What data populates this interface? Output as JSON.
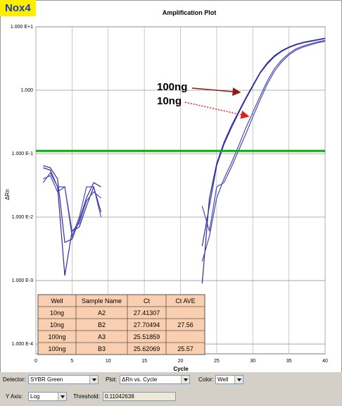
{
  "header": {
    "badge": "Nox4"
  },
  "chart_data": {
    "type": "line",
    "title": "Amplification Plot",
    "xlabel": "Cycle",
    "ylabel": "ΔRn",
    "log_y": true,
    "grid": true,
    "xlim": [
      0,
      40
    ],
    "xticks": [
      0,
      5,
      10,
      15,
      20,
      25,
      30,
      35,
      40
    ],
    "ylim": [
      7e-05,
      10
    ],
    "yticks": [
      {
        "value": 0.0001,
        "label": "1.000 E-4"
      },
      {
        "value": 0.001,
        "label": "1.000 E-3"
      },
      {
        "value": 0.01,
        "label": "1.000 E-2"
      },
      {
        "value": 0.1,
        "label": "1.000 E-1"
      },
      {
        "value": 1,
        "label": "1.000"
      },
      {
        "value": 10,
        "label": "1.000 E+1"
      }
    ],
    "threshold": 0.11042638,
    "threshold_color": "#00b000",
    "x": [
      1,
      2,
      3,
      4,
      5,
      6,
      7,
      8,
      9,
      10,
      11,
      12,
      13,
      14,
      15,
      16,
      17,
      18,
      19,
      20,
      21,
      22,
      23,
      24,
      25,
      26,
      27,
      28,
      29,
      30,
      31,
      32,
      33,
      34,
      35,
      36,
      37,
      38,
      39,
      40
    ],
    "series": [
      {
        "color": "#2b2b9e",
        "values": [
          0.06,
          0.055,
          0.03,
          0.0012,
          0.006,
          0.007,
          0.015,
          0.03,
          0.012,
          null,
          null,
          null,
          null,
          null,
          null,
          null,
          null,
          null,
          null,
          null,
          null,
          null,
          0.0009,
          0.02,
          0.07,
          0.15,
          0.27,
          0.45,
          0.75,
          1.2,
          1.9,
          2.7,
          3.5,
          4.2,
          4.8,
          5.3,
          5.7,
          6.0,
          6.3,
          6.6
        ]
      },
      {
        "color": "#2b2b9e",
        "values": [
          0.065,
          0.06,
          0.04,
          0.004,
          0.0045,
          0.009,
          0.02,
          0.035,
          0.03,
          null,
          null,
          null,
          null,
          null,
          null,
          null,
          null,
          null,
          null,
          null,
          null,
          null,
          0.0035,
          0.015,
          0.065,
          0.14,
          0.25,
          0.43,
          0.72,
          1.15,
          1.85,
          2.6,
          3.4,
          4.1,
          4.7,
          5.2,
          5.6,
          5.9,
          6.2,
          6.5
        ]
      },
      {
        "color": "#4a4ab8",
        "values": [
          0.04,
          0.045,
          0.025,
          0.03,
          0.006,
          0.008,
          0.018,
          0.025,
          0.02,
          null,
          null,
          null,
          null,
          null,
          null,
          null,
          null,
          null,
          null,
          null,
          null,
          null,
          0.002,
          0.005,
          0.02,
          0.04,
          0.07,
          0.13,
          0.25,
          0.45,
          0.8,
          1.4,
          2.2,
          3.0,
          3.8,
          4.5,
          5.0,
          5.4,
          5.8,
          6.1
        ]
      },
      {
        "color": "#4a4ab8",
        "values": [
          0.035,
          0.05,
          0.03,
          0.03,
          0.005,
          0.01,
          0.03,
          0.03,
          0.01,
          null,
          null,
          null,
          null,
          null,
          null,
          null,
          null,
          null,
          null,
          null,
          null,
          null,
          0.015,
          0.006,
          0.03,
          0.035,
          0.06,
          0.11,
          0.2,
          0.38,
          0.7,
          1.25,
          2.0,
          2.8,
          3.6,
          4.3,
          4.8,
          5.2,
          5.6,
          5.9
        ]
      }
    ],
    "annotations": [
      {
        "text": "100ng",
        "color": "#8b1a1a"
      },
      {
        "text": "10ng",
        "color": "#e02020"
      }
    ]
  },
  "table": {
    "header": [
      "Well",
      "Sample Name",
      "Ct",
      "Ct AVE"
    ],
    "rows": [
      [
        "10ng",
        "A2",
        "27.41307"
      ],
      [
        "10ng",
        "B2",
        "27.70494",
        "27.56"
      ],
      [
        "100ng",
        "A3",
        "25.51859"
      ],
      [
        "100ng",
        "B3",
        "25.62069",
        "25.57"
      ]
    ]
  },
  "controls": {
    "detector_label": "Detector:",
    "detector": "SYBR Green",
    "plot_label": "Plot:",
    "plot": "ΔRn vs. Cycle",
    "color_label": "Color:",
    "color": "Well",
    "yaxis_label": "Y Axis:",
    "yaxis": "Log",
    "threshold_label": "Threshold:"
  }
}
